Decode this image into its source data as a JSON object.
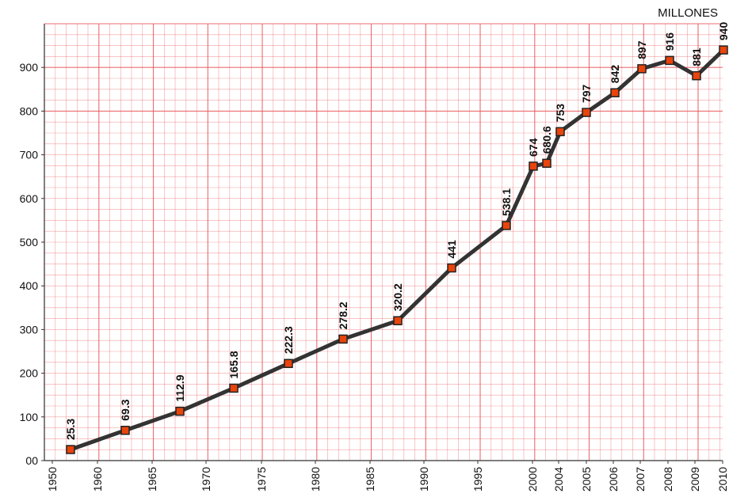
{
  "chart_data": {
    "type": "line",
    "unit_label": "MILLONES",
    "ylim": [
      0,
      1000
    ],
    "yticks": [
      {
        "value": 0,
        "label": "00"
      },
      {
        "value": 100,
        "label": "100"
      },
      {
        "value": 200,
        "label": "200"
      },
      {
        "value": 300,
        "label": "300"
      },
      {
        "value": 400,
        "label": "400"
      },
      {
        "value": 500,
        "label": "500"
      },
      {
        "value": 600,
        "label": "600"
      },
      {
        "value": 700,
        "label": "700"
      },
      {
        "value": 800,
        "label": "800"
      },
      {
        "value": 900,
        "label": "900"
      }
    ],
    "xticks": [
      "1950",
      "1960",
      "1965",
      "1970",
      "1975",
      "1980",
      "1985",
      "1990",
      "1995",
      "2000",
      "2004",
      "2005",
      "2006",
      "2007",
      "2008",
      "2009",
      "2010"
    ],
    "grid": true,
    "grid_color": "#e8545a",
    "line_color": "#333333",
    "marker_color": "#e8440c",
    "points": [
      {
        "x": "1957",
        "y": 25.3,
        "label": "25.3"
      },
      {
        "x": "1962",
        "y": 69.3,
        "label": "69.3"
      },
      {
        "x": "1967",
        "y": 112.9,
        "label": "112.9"
      },
      {
        "x": "1972",
        "y": 165.8,
        "label": "165.8"
      },
      {
        "x": "1977",
        "y": 222.3,
        "label": "222.3"
      },
      {
        "x": "1982",
        "y": 278.2,
        "label": "278.2"
      },
      {
        "x": "1987",
        "y": 320.2,
        "label": "320.2"
      },
      {
        "x": "1992",
        "y": 441,
        "label": "441"
      },
      {
        "x": "1997",
        "y": 538.1,
        "label": "538.1"
      },
      {
        "x": "2000",
        "y": 674,
        "label": "674"
      },
      {
        "x": "2002",
        "y": 680.6,
        "label": "680.6"
      },
      {
        "x": "2004",
        "y": 753,
        "label": "753"
      },
      {
        "x": "2005",
        "y": 797,
        "label": "797"
      },
      {
        "x": "2006",
        "y": 842,
        "label": "842"
      },
      {
        "x": "2007",
        "y": 897,
        "label": "897"
      },
      {
        "x": "2008",
        "y": 916,
        "label": "916"
      },
      {
        "x": "2009",
        "y": 881,
        "label": "881"
      },
      {
        "x": "2010",
        "y": 940,
        "label": "940"
      }
    ]
  }
}
